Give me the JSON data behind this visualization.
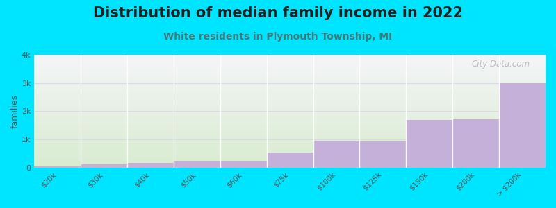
{
  "title": "Distribution of median family income in 2022",
  "subtitle": "White residents in Plymouth Township, MI",
  "categories": [
    "$20k",
    "$30k",
    "$40k",
    "$50k",
    "$60k",
    "$75k",
    "$100k",
    "$125k",
    "$150k",
    "$200k",
    "> $200k"
  ],
  "values": [
    50,
    120,
    175,
    230,
    250,
    530,
    950,
    930,
    1680,
    1720,
    3000
  ],
  "bar_color": "#c4b0d8",
  "plot_bg_top": "#f5f5f8",
  "plot_bg_bottom": "#d8ecd0",
  "background_color": "#00e5ff",
  "title_fontsize": 15,
  "subtitle_fontsize": 10,
  "ylabel": "families",
  "ylim": [
    0,
    4000
  ],
  "yticks": [
    0,
    1000,
    2000,
    3000,
    4000
  ],
  "ytick_labels": [
    "0",
    "1k",
    "2k",
    "3k",
    "4k"
  ],
  "grid_color": "#ddd8e8",
  "watermark": "City-Data.com",
  "title_color": "#222222",
  "subtitle_color": "#447777",
  "tick_color": "#555555"
}
